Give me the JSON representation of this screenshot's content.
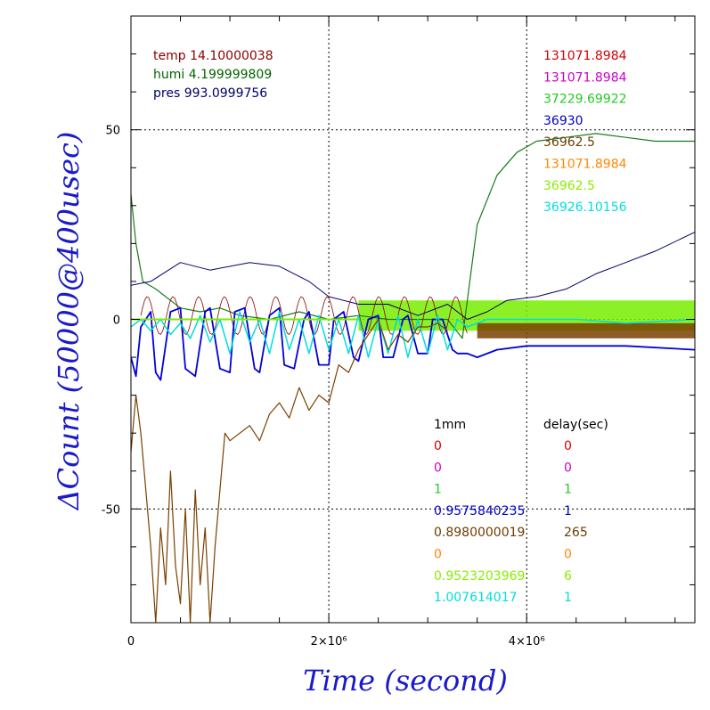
{
  "chart_data": {
    "type": "line",
    "xlabel": "Time (second)",
    "ylabel": "ΔCount (50000@400usec)",
    "xlim": [
      0,
      5700000
    ],
    "ylim": [
      -80,
      80
    ],
    "x_ticks": [
      {
        "value": 0,
        "label": "0"
      },
      {
        "value": 2000000,
        "label": "2×10⁶"
      },
      {
        "value": 4000000,
        "label": "4×10⁶"
      }
    ],
    "y_ticks": [
      {
        "value": 50,
        "label": "50"
      },
      {
        "value": 0,
        "label": "0"
      },
      {
        "value": -50,
        "label": "-50"
      }
    ],
    "grid": "dotted at labeled ticks",
    "env_labels": [
      {
        "text": "temp 14.10000038",
        "color": "#8b0000"
      },
      {
        "text": "humi 4.199999809",
        "color": "#006400"
      },
      {
        "text": "pres 993.0999756",
        "color": "#00006e"
      }
    ],
    "channel_values": [
      {
        "text": "131071.8984",
        "color": "#d40000"
      },
      {
        "text": "131071.8984",
        "color": "#cc00cc"
      },
      {
        "text": "37229.69922",
        "color": "#22cc22"
      },
      {
        "text": "36930",
        "color": "#0000cc"
      },
      {
        "text": "36962.5",
        "color": "#6b3d00"
      },
      {
        "text": "131071.8984",
        "color": "#ff8800"
      },
      {
        "text": "36962.5",
        "color": "#88ee00"
      },
      {
        "text": "36926.10156",
        "color": "#00dddd"
      }
    ],
    "table_headers": {
      "col1": "1mm",
      "col2": "delay(sec)"
    },
    "table_rows": [
      {
        "c1": "0",
        "c2": "0",
        "color": "#d40000"
      },
      {
        "c1": "0",
        "c2": "0",
        "color": "#cc00cc"
      },
      {
        "c1": "1",
        "c2": "1",
        "color": "#22cc22"
      },
      {
        "c1": "0.9575840235",
        "c2": "1",
        "color": "#0000cc"
      },
      {
        "c1": "0.8980000019",
        "c2": "265",
        "color": "#6b3d00"
      },
      {
        "c1": "0",
        "c2": "0",
        "color": "#ff8800"
      },
      {
        "c1": "0.9523203969",
        "c2": "6",
        "color": "#88ee00"
      },
      {
        "c1": "1.007614017",
        "c2": "1",
        "color": "#00dddd"
      }
    ],
    "series": [
      {
        "color": "#1a7a1a",
        "width": 1.2,
        "x": [
          0,
          50000,
          120000,
          250000,
          400000,
          500000,
          700000,
          900000,
          1100000,
          1400000,
          1700000,
          2000000,
          2300000,
          2600000,
          2900000,
          3200000,
          3350000,
          3500000,
          3700000,
          3900000,
          4100000,
          4400000,
          4700000,
          5000000,
          5300000,
          5700000
        ],
        "y": [
          33,
          20,
          10,
          8,
          5,
          3,
          2,
          3,
          1,
          0,
          2,
          0,
          1,
          0,
          0,
          0,
          -5,
          25,
          38,
          44,
          47,
          48,
          49,
          48,
          47,
          47
        ]
      },
      {
        "color": "#00006e",
        "width": 1,
        "x": [
          0,
          200000,
          500000,
          800000,
          1200000,
          1500000,
          1800000,
          2000000,
          2300000,
          2600000,
          2900000,
          3200000,
          3400000,
          3600000,
          3800000,
          4100000,
          4400000,
          4700000,
          5000000,
          5300000,
          5700000
        ],
        "y": [
          9,
          10,
          15,
          13,
          15,
          14,
          10,
          6,
          4,
          4,
          1,
          4,
          0,
          2,
          5,
          6,
          8,
          12,
          15,
          18,
          23
        ]
      },
      {
        "color": "#8b0000",
        "width": 0.8,
        "osc": {
          "x0": 100000,
          "x1": 3400000,
          "period": 260000,
          "amp": 5,
          "center": 1
        }
      },
      {
        "color": "#0000dd",
        "width": 1.8,
        "x": [
          0,
          50000,
          100000,
          200000,
          250000,
          300000,
          400000,
          500000,
          550000,
          650000,
          750000,
          800000,
          900000,
          1000000,
          1050000,
          1150000,
          1250000,
          1300000,
          1400000,
          1500000,
          1550000,
          1650000,
          1750000,
          1800000,
          1900000,
          2000000,
          2050000,
          2150000,
          2250000,
          2300000,
          2400000,
          2500000,
          2550000,
          2650000,
          2750000,
          2800000,
          2900000,
          3000000,
          3050000,
          3150000,
          3250000,
          3300000,
          3400000,
          3500000,
          3700000,
          4000000,
          4500000,
          5000000,
          5700000
        ],
        "y": [
          -10,
          -15,
          -2,
          2,
          -14,
          -16,
          2,
          3,
          -13,
          -15,
          2,
          3,
          -13,
          -14,
          2,
          3,
          -13,
          -14,
          1,
          3,
          -12,
          -13,
          0,
          2,
          -12,
          -12,
          0,
          2,
          -10,
          -11,
          0,
          1,
          -10,
          -10,
          0,
          1,
          -9,
          -9,
          0,
          0,
          -8,
          -9,
          -9,
          -10,
          -8,
          -7,
          -7,
          -7,
          -8
        ]
      },
      {
        "color": "#00dddd",
        "width": 1.5,
        "x": [
          0,
          100000,
          200000,
          300000,
          400000,
          500000,
          600000,
          700000,
          800000,
          900000,
          1000000,
          1100000,
          1200000,
          1300000,
          1400000,
          1500000,
          1600000,
          1700000,
          1800000,
          1900000,
          2000000,
          2100000,
          2200000,
          2300000,
          2400000,
          2500000,
          2600000,
          2700000,
          2800000,
          2900000,
          3000000,
          3100000,
          3200000,
          3300000,
          3400000,
          3600000,
          4000000,
          4500000,
          5000000,
          5700000
        ],
        "y": [
          -2,
          0,
          -3,
          0,
          -4,
          -1,
          -5,
          1,
          -6,
          0,
          -9,
          2,
          -6,
          0,
          -9,
          2,
          -8,
          0,
          -9,
          1,
          -8,
          0,
          -9,
          1,
          -10,
          0,
          -9,
          1,
          -10,
          0,
          -9,
          1,
          -8,
          0,
          -2,
          0,
          0,
          0,
          -1,
          0
        ]
      },
      {
        "color": "#7a4000",
        "width": 1.2,
        "x": [
          0,
          50000,
          100000,
          150000,
          200000,
          250000,
          300000,
          350000,
          400000,
          450000,
          500000,
          550000,
          600000,
          650000,
          700000,
          750000,
          800000,
          850000,
          900000,
          950000,
          1000000,
          1100000,
          1200000,
          1300000,
          1400000,
          1500000,
          1600000,
          1700000,
          1800000,
          1900000,
          2000000,
          2100000,
          2200000,
          2300000,
          2400000,
          2500000,
          2600000,
          2700000,
          2800000,
          2900000,
          3000000,
          3100000,
          3200000
        ],
        "y": [
          -35,
          -20,
          -30,
          -45,
          -60,
          -80,
          -55,
          -70,
          -40,
          -65,
          -75,
          -50,
          -80,
          -45,
          -70,
          -55,
          -80,
          -60,
          -45,
          -30,
          -32,
          -30,
          -28,
          -32,
          -25,
          -22,
          -26,
          -18,
          -24,
          -20,
          -22,
          -12,
          -14,
          -8,
          -4,
          0,
          -8,
          -4,
          -6,
          -2,
          -2,
          -1,
          -3
        ]
      }
    ],
    "green_band": {
      "color": "#77ee00",
      "x0": 2300000,
      "x1": 5700000,
      "top": 5,
      "bottom": -3
    },
    "brown_band": {
      "color": "#7a4000",
      "x0": 3500000,
      "x1": 5700000,
      "top": -1,
      "bottom": -5
    }
  }
}
